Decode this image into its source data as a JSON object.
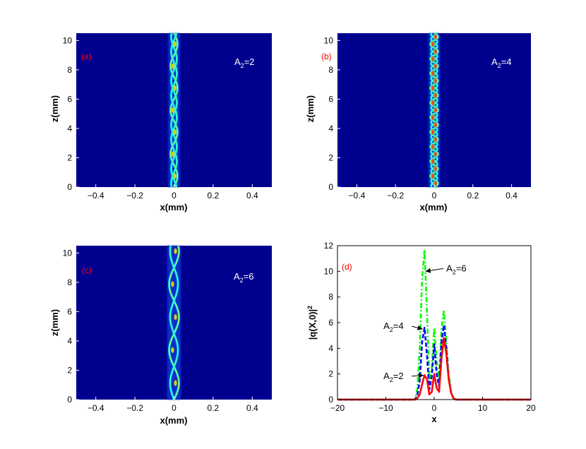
{
  "chart_data": [
    {
      "id": "a",
      "type": "heatmap",
      "panel_label": "(a)",
      "annotation": {
        "main": "A",
        "sub": "2",
        "rest": "=2"
      },
      "xlabel": "x(mm)",
      "ylabel": "z(mm)",
      "xlim": [
        -0.5,
        0.5
      ],
      "ylim": [
        0,
        10.5
      ],
      "xticks": [
        -0.4,
        -0.2,
        0,
        0.2,
        0.4
      ],
      "xtick_labels": [
        "−0.4",
        "−0.2",
        "0",
        "0.2",
        "0.4"
      ],
      "yticks": [
        0,
        2,
        4,
        6,
        8,
        10
      ],
      "ytick_labels": [
        "0",
        "2",
        "4",
        "6",
        "8",
        "10"
      ],
      "colormap": "jet",
      "background_color": "#00008f",
      "beam": {
        "center_x": 0.0,
        "half_width": 0.03,
        "period_z": 3.0,
        "amplitude": 0.018,
        "strands": 3
      }
    },
    {
      "id": "b",
      "type": "heatmap",
      "panel_label": "(b)",
      "annotation": {
        "main": "A",
        "sub": "2",
        "rest": "=4"
      },
      "xlabel": "x(mm)",
      "ylabel": "z(mm)",
      "xlim": [
        -0.5,
        0.5
      ],
      "ylim": [
        0,
        10.5
      ],
      "xticks": [
        -0.4,
        -0.2,
        0,
        0.2,
        0.4
      ],
      "xtick_labels": [
        "−0.4",
        "−0.2",
        "0",
        "0.2",
        "0.4"
      ],
      "yticks": [
        0,
        2,
        4,
        6,
        8,
        10
      ],
      "ytick_labels": [
        "0",
        "2",
        "4",
        "6",
        "8",
        "10"
      ],
      "colormap": "jet",
      "background_color": "#00008f",
      "beam": {
        "center_x": 0.0,
        "half_width": 0.03,
        "period_z": 1.0,
        "amplitude": 0.02,
        "strands": 3
      }
    },
    {
      "id": "c",
      "type": "heatmap",
      "panel_label": "(c)",
      "annotation": {
        "main": "A",
        "sub": "2",
        "rest": "=6"
      },
      "xlabel": "x(mm)",
      "ylabel": "z(mm)",
      "xlim": [
        -0.5,
        0.5
      ],
      "ylim": [
        0,
        10.5
      ],
      "xticks": [
        -0.4,
        -0.2,
        0,
        0.2,
        0.4
      ],
      "xtick_labels": [
        "−0.4",
        "−0.2",
        "0",
        "0.2",
        "0.4"
      ],
      "yticks": [
        0,
        2,
        4,
        6,
        8,
        10
      ],
      "ytick_labels": [
        "0",
        "2",
        "4",
        "6",
        "8",
        "10"
      ],
      "colormap": "jet",
      "background_color": "#00008f",
      "beam": {
        "center_x": 0.0,
        "half_width": 0.035,
        "period_z": 4.5,
        "amplitude": 0.025,
        "strands": 2
      }
    },
    {
      "id": "d",
      "type": "line",
      "panel_label": "(d)",
      "xlabel": "x",
      "ylabel": "|q(X,0)|²",
      "ylabel_parts": {
        "main": "|q(X,0)|",
        "sup": "2"
      },
      "xlim": [
        -20,
        20
      ],
      "ylim": [
        0,
        12
      ],
      "xticks": [
        -20,
        -10,
        0,
        10,
        20
      ],
      "xtick_labels": [
        "−20",
        "−10",
        "0",
        "10",
        "20"
      ],
      "yticks": [
        0,
        2,
        4,
        6,
        8,
        10,
        12
      ],
      "ytick_labels": [
        "0",
        "2",
        "4",
        "6",
        "8",
        "10",
        "12"
      ],
      "series": [
        {
          "label": {
            "main": "A",
            "sub": "2",
            "rest": "=2"
          },
          "color": "#ff0000",
          "style": "solid",
          "x": [
            -20,
            -4,
            -3.5,
            -3,
            -2.5,
            -2,
            -1.5,
            -1,
            -0.5,
            0,
            0.5,
            1,
            1.5,
            2,
            2.5,
            3,
            3.5,
            4,
            4.5,
            5,
            20
          ],
          "y": [
            0,
            0,
            0.1,
            0.4,
            1.2,
            1.9,
            1.6,
            0.4,
            0.6,
            2.0,
            0.9,
            0.6,
            3.2,
            4.8,
            3.6,
            1.6,
            0.5,
            0.1,
            0,
            0,
            0
          ]
        },
        {
          "label": {
            "main": "A",
            "sub": "2",
            "rest": "=4"
          },
          "color": "#0000ff",
          "style": "dashed",
          "x": [
            -20,
            -4,
            -3.5,
            -3,
            -2.5,
            -2,
            -1.5,
            -1,
            -0.5,
            0,
            0.5,
            1,
            1.5,
            2,
            2.5,
            3,
            3.5,
            4,
            4.5,
            5,
            20
          ],
          "y": [
            0,
            0,
            0.3,
            1.5,
            4.5,
            5.6,
            3.5,
            0.8,
            1.8,
            4.3,
            2.0,
            1.0,
            4.5,
            5.8,
            4.0,
            1.7,
            0.5,
            0.1,
            0,
            0,
            0
          ]
        },
        {
          "label": {
            "main": "A",
            "sub": "2",
            "rest": "=6"
          },
          "color": "#00ff00",
          "style": "dashdot",
          "x": [
            -20,
            -4,
            -3.5,
            -3,
            -2.5,
            -2,
            -1.5,
            -1,
            -0.5,
            0,
            0.5,
            1,
            1.5,
            2,
            2.5,
            3,
            3.5,
            4,
            4.5,
            5,
            20
          ],
          "y": [
            0,
            0,
            0.8,
            4.0,
            9.5,
            11.7,
            7.0,
            1.5,
            2.5,
            5.6,
            3.0,
            1.5,
            5.5,
            7.0,
            4.6,
            1.9,
            0.6,
            0.1,
            0,
            0,
            0
          ]
        }
      ],
      "annotations": [
        {
          "label": {
            "main": "A",
            "sub": "2",
            "rest": "=6"
          },
          "arrow_to": [
            -1.8,
            10
          ],
          "text_at": [
            2.5,
            10
          ]
        },
        {
          "label": {
            "main": "A",
            "sub": "2",
            "rest": "=4"
          },
          "arrow_to": [
            -2.4,
            5.5
          ],
          "text_at": [
            -10.5,
            5.5
          ]
        },
        {
          "label": {
            "main": "A",
            "sub": "2",
            "rest": "=2"
          },
          "arrow_to": [
            -2.2,
            1.9
          ],
          "text_at": [
            -10.5,
            1.6
          ]
        }
      ]
    }
  ]
}
